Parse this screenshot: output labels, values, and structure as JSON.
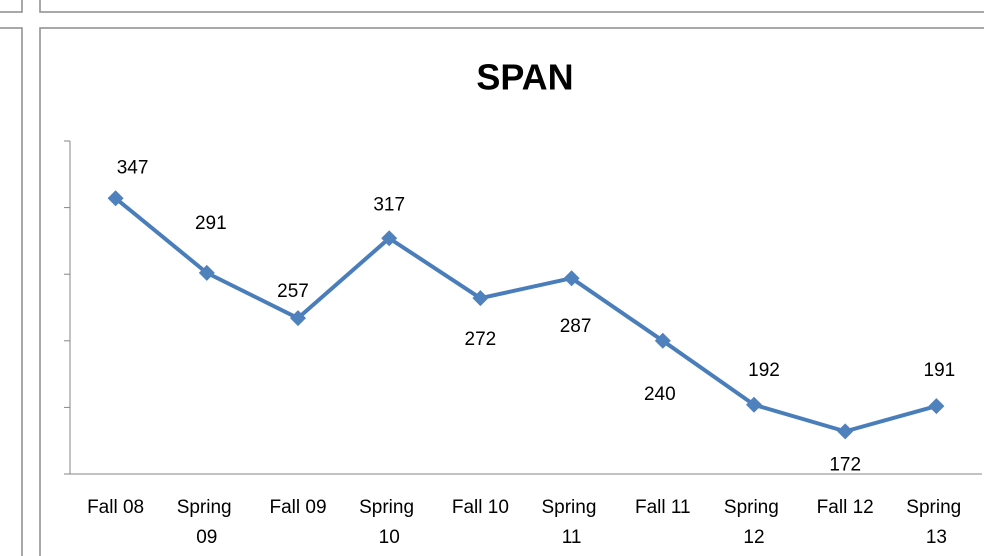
{
  "chart_data": {
    "type": "line",
    "title": "SPAN",
    "categories": [
      "Fall 08",
      "Spring 09",
      "Fall 09",
      "Spring 10",
      "Fall 10",
      "Spring 11",
      "Fall 11",
      "Spring 12",
      "Fall 12",
      "Spring 13"
    ],
    "series": [
      {
        "name": "SPAN",
        "color": "#4a7ebb",
        "values": [
          347,
          291,
          257,
          317,
          272,
          287,
          240,
          192,
          172,
          191
        ]
      }
    ],
    "ylim": [
      140,
      390
    ],
    "yticks": [
      140,
      190,
      240,
      290,
      340,
      390
    ],
    "grid": false
  }
}
